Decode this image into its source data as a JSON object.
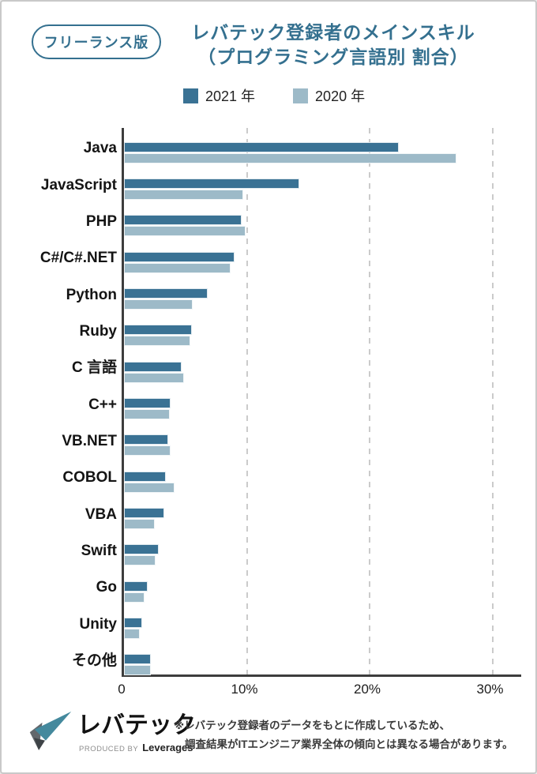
{
  "badge": {
    "label": "フリーランス版"
  },
  "title": {
    "line1": "レバテック登録者のメインスキル",
    "line2": "（プログラミング言語別 割合）"
  },
  "legend": [
    {
      "label": "2021 年",
      "color": "#3a7294"
    },
    {
      "label": "2020 年",
      "color": "#9dbac8"
    }
  ],
  "chart_data": {
    "type": "bar",
    "orientation": "horizontal",
    "title": "レバテック登録者のメインスキル（プログラミング言語別 割合）",
    "unit": "%",
    "categories": [
      "Java",
      "JavaScript",
      "PHP",
      "C#/C#.NET",
      "Python",
      "Ruby",
      "C 言語",
      "C++",
      "VB.NET",
      "COBOL",
      "VBA",
      "Swift",
      "Go",
      "Unity",
      "その他"
    ],
    "series": [
      {
        "name": "2021 年",
        "color": "#3a7294",
        "values": [
          22.4,
          14.3,
          9.6,
          9.0,
          6.8,
          5.5,
          4.7,
          3.8,
          3.6,
          3.4,
          3.3,
          2.8,
          1.9,
          1.5,
          2.2
        ]
      },
      {
        "name": "2020 年",
        "color": "#9dbac8",
        "values": [
          27.1,
          9.7,
          9.9,
          8.7,
          5.6,
          5.4,
          4.9,
          3.7,
          3.8,
          4.1,
          2.5,
          2.6,
          1.7,
          1.3,
          2.2
        ]
      }
    ],
    "xlim": [
      0,
      32.5
    ],
    "x_ticks": [
      {
        "value": 0,
        "label": "0"
      },
      {
        "value": 10,
        "label": "10%"
      },
      {
        "value": 20,
        "label": "20%"
      },
      {
        "value": 30,
        "label": "30%"
      }
    ],
    "grid": "vertical-dashed",
    "legend_position": "top"
  },
  "footer": {
    "logo_name": "レバテック",
    "logo_sub_prefix": "PRODUCED BY",
    "logo_sub_name": "Leverages",
    "note_line1": "※レバテック登録者のデータをもとに作成しているため、",
    "note_line2": "調査結果がITエンジニア業界全体の傾向とは異なる場合があります。"
  }
}
